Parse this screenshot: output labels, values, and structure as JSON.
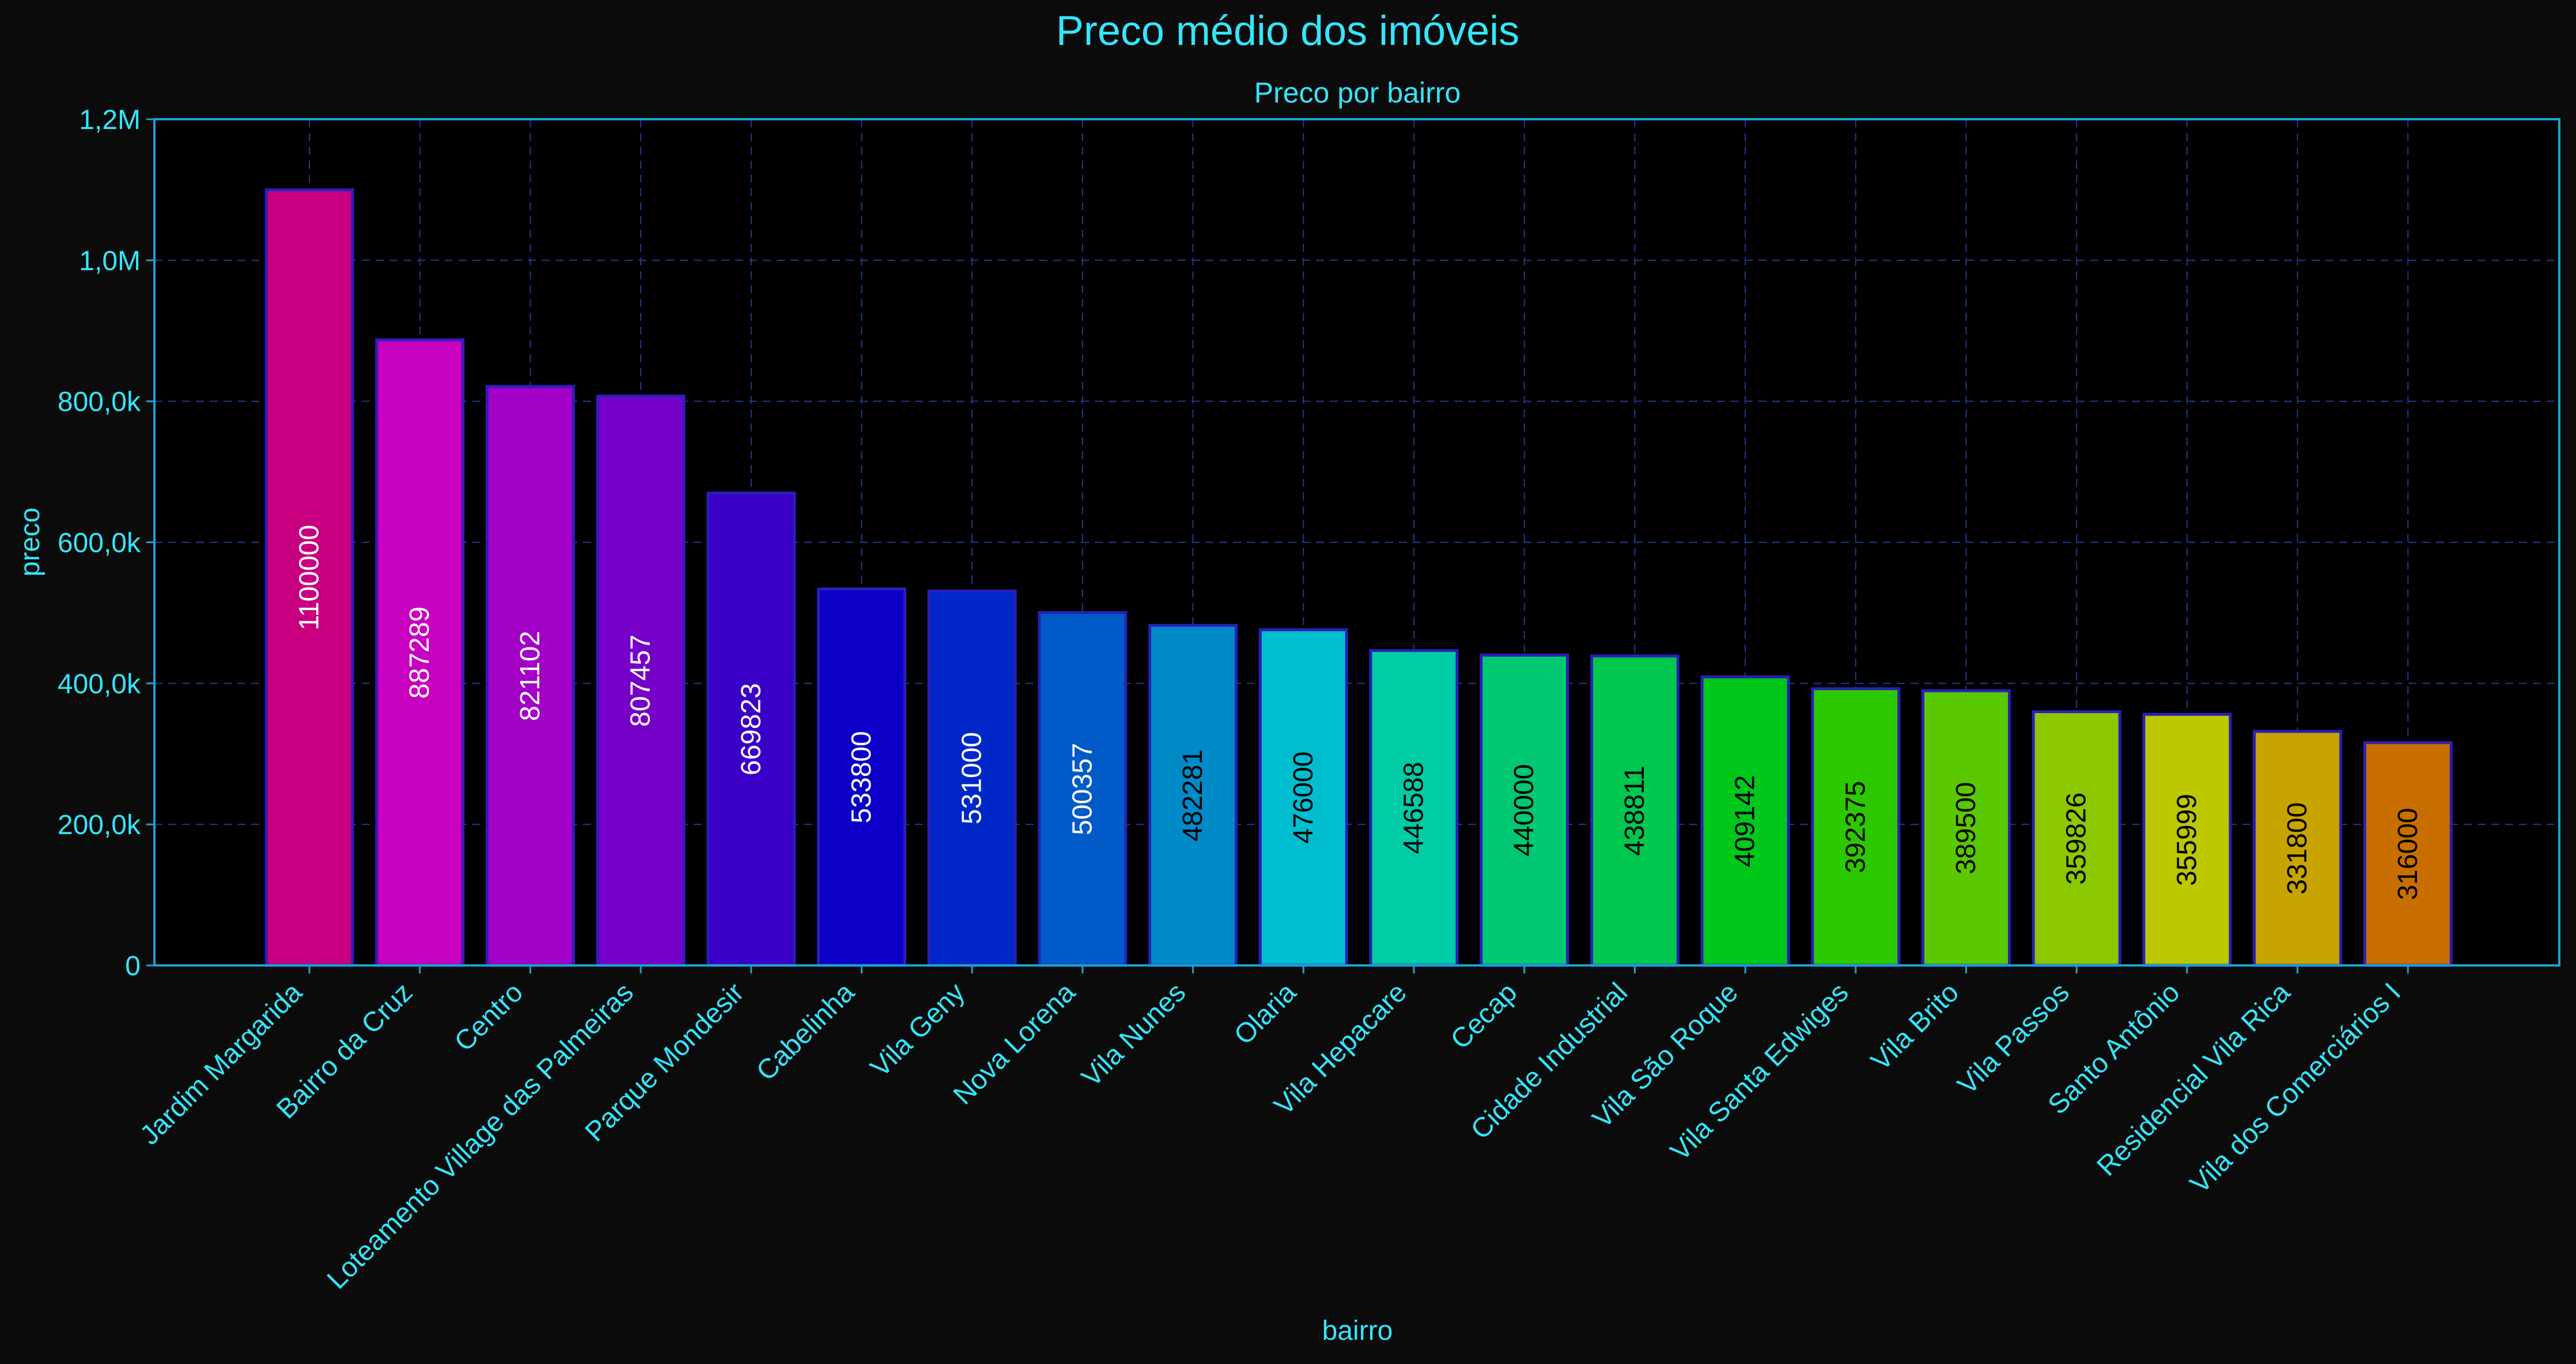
{
  "chart_data": {
    "type": "bar",
    "title": "Preco médio dos imóveis",
    "subtitle": "Preco por bairro",
    "xlabel": "bairro",
    "ylabel": "preco",
    "ylim": [
      0,
      1200000
    ],
    "grid": true,
    "yticks": [
      {
        "value": 0,
        "label": "0"
      },
      {
        "value": 200000,
        "label": "200,0k"
      },
      {
        "value": 400000,
        "label": "400,0k"
      },
      {
        "value": 600000,
        "label": "600,0k"
      },
      {
        "value": 800000,
        "label": "800,0k"
      },
      {
        "value": 1000000,
        "label": "1,0M"
      },
      {
        "value": 1200000,
        "label": "1,2M"
      }
    ],
    "categories": [
      "Jardim Margarida",
      "Bairro da Cruz",
      "Centro",
      "Loteamento Village das Palmeiras",
      "Parque Mondesir",
      "Cabelinha",
      "Vila Geny",
      "Nova Lorena",
      "Vila Nunes",
      "Olaria",
      "Vila Hepacare",
      "Cecap",
      "Cidade Industrial",
      "Vila São Roque",
      "Vila Santa Edwiges",
      "Vila Brito",
      "Vila Passos",
      "Santo Antônio",
      "Residencial Vila Rica",
      "Vila dos Comerciários I"
    ],
    "values": [
      1100000,
      887289,
      821102,
      807457,
      669823,
      533800,
      531000,
      500357,
      482281,
      476000,
      446588,
      440000,
      438811,
      409142,
      392375,
      389500,
      359826,
      355999,
      331800,
      316000
    ],
    "data_labels": [
      "1100000",
      "887289",
      "821102",
      "807457",
      "669823",
      "533800",
      "531000",
      "500357",
      "482281",
      "476000",
      "446588",
      "440000",
      "438811",
      "409142",
      "392375",
      "389500",
      "359826",
      "355999",
      "331800",
      "316000"
    ],
    "colors": [
      "#c8007f",
      "#c800bf",
      "#a300c8",
      "#7600c8",
      "#3a00c8",
      "#0c00c8",
      "#0028c8",
      "#005ac8",
      "#008ac8",
      "#00bed0",
      "#00cca6",
      "#00c873",
      "#00c84e",
      "#00c81a",
      "#2cc800",
      "#5ac800",
      "#8cc800",
      "#bcc800",
      "#c8a400",
      "#c86e00"
    ],
    "label_colors": [
      "#ffffff",
      "#ffffff",
      "#ffffff",
      "#ffffff",
      "#ffffff",
      "#ffffff",
      "#ffffff",
      "#ffffff",
      "#000000",
      "#000000",
      "#000000",
      "#000000",
      "#000000",
      "#000000",
      "#000000",
      "#000000",
      "#000000",
      "#000000",
      "#000000",
      "#000000"
    ],
    "accent_color": "#33e6ff",
    "axis_color": "#1aa3d1",
    "grid_color": "#1f3a8f",
    "bar_edge_color": "#2a1fb8"
  }
}
